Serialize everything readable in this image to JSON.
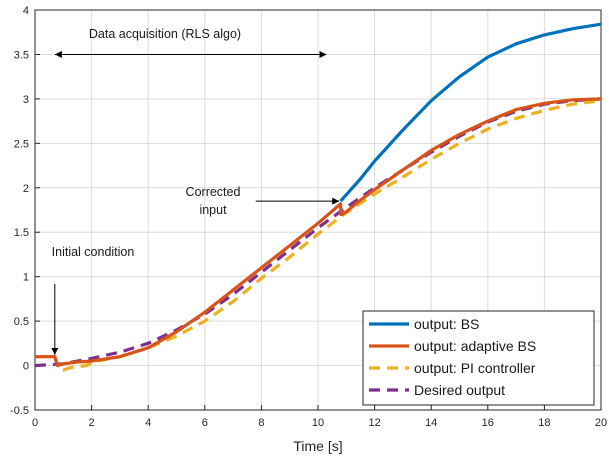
{
  "chart_data": {
    "type": "line",
    "xlabel": "Time [s]",
    "ylabel": "",
    "xlim": [
      0,
      20
    ],
    "ylim": [
      -0.5,
      4
    ],
    "xticks": [
      "0",
      "2",
      "4",
      "6",
      "8",
      "10",
      "12",
      "14",
      "16",
      "18",
      "20"
    ],
    "yticks": [
      "-0.5",
      "0",
      "0.5",
      "1",
      "1.5",
      "2",
      "2.5",
      "3",
      "3.5",
      "4"
    ],
    "grid": true,
    "legend_position": "bottom-right",
    "series": [
      {
        "name": "output:  BS",
        "color": "#0072BD",
        "style": "solid",
        "x": [
          10.8,
          11.5,
          12,
          13,
          14,
          15,
          16,
          17,
          18,
          19,
          20
        ],
        "y": [
          1.85,
          2.1,
          2.3,
          2.65,
          2.98,
          3.25,
          3.47,
          3.62,
          3.72,
          3.79,
          3.84
        ]
      },
      {
        "name": "output:  adaptive BS",
        "color": "#D95319",
        "style": "solid",
        "x": [
          0,
          0.7,
          0.75,
          0.8,
          1,
          1.5,
          2,
          3,
          4,
          5,
          6,
          7,
          8,
          9,
          10,
          10.8,
          10.81,
          10.85,
          11,
          11.5,
          12,
          13,
          14,
          15,
          16,
          17,
          18,
          19,
          20
        ],
        "y": [
          0.1,
          0.1,
          0.05,
          0.0,
          0.02,
          0.04,
          0.05,
          0.1,
          0.2,
          0.38,
          0.6,
          0.85,
          1.1,
          1.35,
          1.6,
          1.82,
          1.7,
          1.7,
          1.73,
          1.86,
          1.98,
          2.2,
          2.42,
          2.6,
          2.75,
          2.88,
          2.95,
          2.99,
          3.0
        ]
      },
      {
        "name": "output:  PI controller",
        "color": "#EDB120",
        "style": "dashed",
        "x": [
          0,
          0.7,
          0.8,
          1.0,
          1.3,
          1.8,
          2.2,
          3,
          4,
          5,
          6,
          7,
          8,
          9,
          10,
          11,
          12,
          13,
          14,
          15,
          16,
          17,
          18,
          19,
          20
        ],
        "y": [
          0.1,
          0.1,
          0.0,
          -0.05,
          -0.02,
          0.0,
          0.05,
          0.1,
          0.2,
          0.33,
          0.5,
          0.72,
          0.98,
          1.22,
          1.48,
          1.72,
          1.93,
          2.12,
          2.32,
          2.5,
          2.66,
          2.78,
          2.87,
          2.94,
          2.98
        ]
      },
      {
        "name": "Desired output",
        "color": "#7E2F8E",
        "style": "dashed",
        "x": [
          0,
          1,
          2,
          3,
          4,
          5,
          6,
          7,
          8,
          9,
          10,
          11,
          12,
          13,
          14,
          15,
          16,
          17,
          18,
          19,
          20
        ],
        "y": [
          0,
          0.02,
          0.08,
          0.15,
          0.25,
          0.4,
          0.58,
          0.8,
          1.05,
          1.3,
          1.55,
          1.78,
          2.0,
          2.2,
          2.4,
          2.58,
          2.74,
          2.86,
          2.94,
          2.98,
          3.0
        ]
      }
    ],
    "annotations": {
      "data_acquisition": {
        "text": "Data acquisition (RLS algo)",
        "x_from": 0.7,
        "x_to": 10.3,
        "y": 3.5
      },
      "corrected_input": {
        "line1": "Corrected",
        "line2": "input",
        "tail_x": 7.8,
        "tail_y": 1.85,
        "head_x": 10.75,
        "head_y": 1.85
      },
      "initial_condition": {
        "text": "Initial condition",
        "tail_x": 0.7,
        "tail_y": 0.92,
        "head_x": 0.7,
        "head_y": 0.12
      }
    }
  }
}
